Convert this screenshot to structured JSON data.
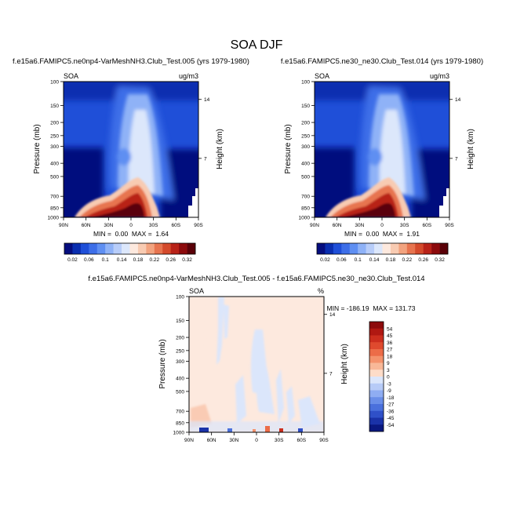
{
  "figure": {
    "title": "SOA DJF"
  },
  "chart_data": [
    {
      "type": "heatmap",
      "title": "f.e15a6.FAMIPC5.ne0np4-VarMeshNH3.Club_Test.005 (yrs 1979-1980)",
      "left_label": "SOA",
      "units": "ug/m3",
      "ylabel": "Pressure (mb)",
      "y2label": "Height (km)",
      "x_ticks": [
        "90N",
        "60N",
        "30N",
        "0",
        "30S",
        "60S",
        "90S"
      ],
      "y_ticks": [
        "100",
        "150",
        "200",
        "250",
        "300",
        "400",
        "500",
        "700",
        "850",
        "1000"
      ],
      "y2_ticks": [
        "14",
        "7"
      ],
      "stats": "MIN =  0.00  MAX =  1.64",
      "min": 0.0,
      "max": 1.64,
      "colorbar": {
        "orientation": "horizontal",
        "levels": [
          "0.02",
          "0.06",
          "0.1",
          "0.14",
          "0.18",
          "0.22",
          "0.26",
          "0.32"
        ],
        "colors": [
          "#050d7e",
          "#0a2eb0",
          "#1f4fd8",
          "#3d6ee8",
          "#5f8ff2",
          "#8fb2f7",
          "#b8cdf9",
          "#dce7fb",
          "#fde9de",
          "#f8cbb2",
          "#f2a37f",
          "#e7744f",
          "#d44a2c",
          "#b82218",
          "#8c0a0c",
          "#5a0008"
        ]
      }
    },
    {
      "type": "heatmap",
      "title": "f.e15a6.FAMIPC5.ne30_ne30.Club_Test.014 (yrs 1979-1980)",
      "left_label": "SOA",
      "units": "ug/m3",
      "ylabel": "Pressure (mb)",
      "y2label": "Height (km)",
      "x_ticks": [
        "90N",
        "60N",
        "30N",
        "0",
        "30S",
        "60S",
        "90S"
      ],
      "y_ticks": [
        "100",
        "150",
        "200",
        "250",
        "300",
        "400",
        "500",
        "700",
        "850",
        "1000"
      ],
      "y2_ticks": [
        "14",
        "7"
      ],
      "stats": "MIN =  0.00  MAX =  1.91",
      "min": 0.0,
      "max": 1.91,
      "colorbar": {
        "orientation": "horizontal",
        "levels": [
          "0.02",
          "0.06",
          "0.1",
          "0.14",
          "0.18",
          "0.22",
          "0.26",
          "0.32"
        ],
        "colors": [
          "#050d7e",
          "#0a2eb0",
          "#1f4fd8",
          "#3d6ee8",
          "#5f8ff2",
          "#8fb2f7",
          "#b8cdf9",
          "#dce7fb",
          "#fde9de",
          "#f8cbb2",
          "#f2a37f",
          "#e7744f",
          "#d44a2c",
          "#b82218",
          "#8c0a0c",
          "#5a0008"
        ]
      }
    },
    {
      "type": "heatmap",
      "title": "f.e15a6.FAMIPC5.ne0np4-VarMeshNH3.Club_Test.005 - f.e15a6.FAMIPC5.ne30_ne30.Club_Test.014",
      "left_label": "SOA",
      "units": "%",
      "ylabel": "Pressure (mb)",
      "y2label": "Height (km)",
      "x_ticks": [
        "90N",
        "60N",
        "30N",
        "0",
        "30S",
        "60S",
        "90S"
      ],
      "y_ticks": [
        "100",
        "150",
        "200",
        "250",
        "300",
        "400",
        "500",
        "700",
        "850",
        "1000"
      ],
      "y2_ticks": [
        "14",
        "7"
      ],
      "stats": "MIN = -186.19  MAX = 131.73",
      "min": -186.19,
      "max": 131.73,
      "colorbar": {
        "orientation": "vertical",
        "levels": [
          "54",
          "45",
          "36",
          "27",
          "18",
          "9",
          "3",
          "0",
          "-3",
          "-9",
          "-18",
          "-27",
          "-36",
          "-45",
          "-54"
        ],
        "colors": [
          "#8c0a0c",
          "#b01812",
          "#cc2e1e",
          "#df4a2e",
          "#ec6c48",
          "#f4926c",
          "#f8b898",
          "#fddcc8",
          "#dbe6fb",
          "#b7cbf7",
          "#8fadf2",
          "#6a8ee8",
          "#4a70dc",
          "#2f50c8",
          "#1a32a8",
          "#0a1880"
        ]
      }
    }
  ]
}
